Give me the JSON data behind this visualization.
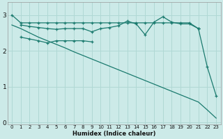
{
  "background_color": "#cceae8",
  "grid_color": "#b0d8d4",
  "line_color": "#1a7a6e",
  "xlabel": "Humidex (Indice chaleur)",
  "xlim": [
    -0.5,
    23.5
  ],
  "ylim": [
    -0.05,
    3.35
  ],
  "yticks": [
    0,
    1,
    2,
    3
  ],
  "xticks": [
    0,
    1,
    2,
    3,
    4,
    5,
    6,
    7,
    8,
    9,
    10,
    11,
    12,
    13,
    14,
    15,
    16,
    17,
    18,
    19,
    20,
    21,
    22,
    23
  ],
  "line1_x": [
    0,
    1,
    2,
    3,
    4,
    5,
    6,
    7,
    8,
    9,
    10,
    11,
    12,
    13,
    14,
    15,
    16,
    17,
    18,
    19,
    20,
    21
  ],
  "line1_y": [
    3.0,
    2.78,
    2.78,
    2.78,
    2.78,
    2.78,
    2.78,
    2.78,
    2.78,
    2.78,
    2.78,
    2.78,
    2.78,
    2.78,
    2.78,
    2.78,
    2.78,
    2.78,
    2.78,
    2.78,
    2.78,
    2.62
  ],
  "line2_x": [
    1,
    2,
    3,
    4,
    5,
    6,
    7,
    8,
    9,
    10,
    11,
    12,
    13,
    14,
    15,
    16,
    17,
    18,
    19,
    20,
    21
  ],
  "line2_y": [
    2.72,
    2.68,
    2.65,
    2.62,
    2.6,
    2.62,
    2.62,
    2.62,
    2.53,
    2.62,
    2.65,
    2.7,
    2.83,
    2.75,
    2.45,
    2.8,
    2.95,
    2.8,
    2.75,
    2.75,
    2.62
  ],
  "line3_x": [
    1,
    2,
    3,
    4,
    5,
    6,
    7,
    8,
    9
  ],
  "line3_y": [
    2.38,
    2.33,
    2.28,
    2.22,
    2.28,
    2.28,
    2.28,
    2.28,
    2.25
  ],
  "line4_x": [
    0,
    1,
    2,
    3,
    4,
    5,
    6,
    7,
    8,
    9,
    10,
    11,
    12,
    13,
    14,
    15,
    16,
    17,
    18,
    19,
    20,
    21,
    22,
    23
  ],
  "line4_y": [
    2.72,
    2.62,
    2.5,
    2.38,
    2.28,
    2.18,
    2.08,
    1.97,
    1.87,
    1.77,
    1.67,
    1.57,
    1.47,
    1.37,
    1.27,
    1.17,
    1.07,
    0.97,
    0.87,
    0.77,
    0.67,
    0.57,
    0.35,
    0.12
  ],
  "line5_x": [
    21,
    22,
    23
  ],
  "line5_y": [
    2.62,
    1.55,
    0.75
  ]
}
